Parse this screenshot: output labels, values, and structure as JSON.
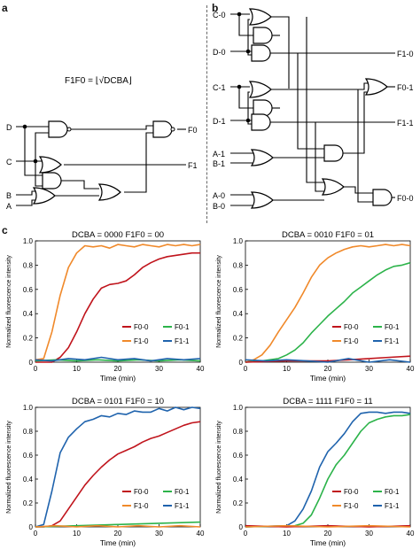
{
  "panels": {
    "a": "a",
    "b": "b",
    "c": "c"
  },
  "circuit_a": {
    "formula": "F1F0 = ⌊√DCBA⌋",
    "inputs": [
      "D",
      "C",
      "B",
      "A"
    ],
    "outputs": [
      "F0",
      "F1"
    ]
  },
  "circuit_b": {
    "inputs": [
      "C-0",
      "D-0",
      "C-1",
      "D-1",
      "A-1",
      "B-1",
      "A-0",
      "B-0"
    ],
    "outputs": [
      "F1-0",
      "F0-1",
      "F1-1",
      "F0-0"
    ]
  },
  "colors": {
    "F0-0": "#c0141c",
    "F0-1": "#2cb34a",
    "F1-0": "#f0892a",
    "F1-1": "#1f63ad"
  },
  "chart_data": [
    {
      "type": "line",
      "title": "DCBA = 0000 F1F0 = 00",
      "xlabel": "Time (min)",
      "ylabel": "Normalized fluorescence intensity",
      "xlim": [
        0,
        40
      ],
      "ylim": [
        0,
        1.0
      ],
      "xticks": [
        "0",
        "10",
        "20",
        "30",
        "40"
      ],
      "yticks": [
        "0",
        "0.2",
        "0.4",
        "0.6",
        "0.8",
        "1.0"
      ],
      "legend": [
        "F0-0",
        "F0-1",
        "F1-0",
        "F1-1"
      ],
      "legend_position": "bottom-right",
      "series": [
        {
          "name": "F1-0",
          "x": [
            0,
            2,
            4,
            6,
            8,
            10,
            12,
            14,
            16,
            18,
            20,
            22,
            24,
            26,
            28,
            30,
            32,
            34,
            36,
            38,
            40
          ],
          "y": [
            0.02,
            0.03,
            0.25,
            0.55,
            0.78,
            0.9,
            0.96,
            0.95,
            0.96,
            0.94,
            0.97,
            0.96,
            0.95,
            0.97,
            0.96,
            0.95,
            0.97,
            0.96,
            0.97,
            0.96,
            0.97
          ]
        },
        {
          "name": "F0-0",
          "x": [
            0,
            2,
            4,
            6,
            8,
            10,
            12,
            14,
            16,
            18,
            20,
            22,
            24,
            26,
            28,
            30,
            32,
            34,
            36,
            38,
            40
          ],
          "y": [
            0.0,
            0.0,
            0.0,
            0.04,
            0.12,
            0.25,
            0.4,
            0.52,
            0.61,
            0.64,
            0.65,
            0.67,
            0.72,
            0.78,
            0.82,
            0.85,
            0.87,
            0.88,
            0.89,
            0.9,
            0.9
          ]
        },
        {
          "name": "F0-1",
          "x": [
            0,
            5,
            10,
            15,
            20,
            25,
            30,
            35,
            40
          ],
          "y": [
            0.01,
            0.02,
            0.01,
            0.02,
            0.01,
            0.02,
            0.01,
            0.02,
            0.01
          ]
        },
        {
          "name": "F1-1",
          "x": [
            0,
            4,
            8,
            12,
            16,
            20,
            24,
            28,
            32,
            36,
            40
          ],
          "y": [
            0.02,
            0.01,
            0.03,
            0.02,
            0.04,
            0.02,
            0.03,
            0.01,
            0.03,
            0.02,
            0.03
          ]
        }
      ]
    },
    {
      "type": "line",
      "title": "DCBA = 0010 F1F0 = 01",
      "xlabel": "Time (min)",
      "ylabel": "Normalized fluorescence intensity",
      "xlim": [
        0,
        40
      ],
      "ylim": [
        0,
        1.0
      ],
      "xticks": [
        "0",
        "10",
        "20",
        "30",
        "40"
      ],
      "yticks": [
        "0",
        "0.2",
        "0.4",
        "0.6",
        "0.8",
        "1.0"
      ],
      "legend": [
        "F0-0",
        "F0-1",
        "F1-0",
        "F1-1"
      ],
      "legend_position": "bottom-right",
      "series": [
        {
          "name": "F1-0",
          "x": [
            0,
            2,
            4,
            6,
            8,
            10,
            12,
            14,
            16,
            18,
            20,
            22,
            24,
            26,
            28,
            30,
            32,
            34,
            36,
            38,
            40
          ],
          "y": [
            0.0,
            0.02,
            0.06,
            0.14,
            0.25,
            0.35,
            0.45,
            0.57,
            0.7,
            0.8,
            0.86,
            0.9,
            0.93,
            0.95,
            0.96,
            0.95,
            0.96,
            0.97,
            0.96,
            0.97,
            0.96
          ]
        },
        {
          "name": "F0-1",
          "x": [
            0,
            4,
            8,
            10,
            12,
            14,
            16,
            18,
            20,
            22,
            24,
            26,
            28,
            30,
            32,
            34,
            36,
            38,
            40
          ],
          "y": [
            0.0,
            0.01,
            0.03,
            0.06,
            0.1,
            0.16,
            0.24,
            0.31,
            0.38,
            0.44,
            0.5,
            0.57,
            0.62,
            0.67,
            0.72,
            0.76,
            0.79,
            0.8,
            0.82
          ]
        },
        {
          "name": "F0-0",
          "x": [
            0,
            10,
            20,
            25,
            30,
            35,
            40
          ],
          "y": [
            0.0,
            0.01,
            0.01,
            0.02,
            0.03,
            0.04,
            0.05
          ]
        },
        {
          "name": "F1-1",
          "x": [
            0,
            5,
            10,
            15,
            20,
            25,
            30,
            35,
            40
          ],
          "y": [
            0.02,
            0.01,
            0.02,
            0.01,
            0.0,
            0.03,
            0.0,
            0.02,
            0.0
          ]
        }
      ]
    },
    {
      "type": "line",
      "title": "DCBA = 0101 F1F0 = 10",
      "xlabel": "Time (min)",
      "ylabel": "Normalized fluorescence intensity",
      "xlim": [
        0,
        40
      ],
      "ylim": [
        0,
        1.0
      ],
      "xticks": [
        "0",
        "10",
        "20",
        "30",
        "40"
      ],
      "yticks": [
        "0",
        "0.2",
        "0.4",
        "0.6",
        "0.8",
        "1.0"
      ],
      "legend": [
        "F0-0",
        "F0-1",
        "F1-0",
        "F1-1"
      ],
      "legend_position": "bottom-right",
      "series": [
        {
          "name": "F1-1",
          "x": [
            0,
            2,
            4,
            6,
            8,
            10,
            12,
            14,
            16,
            18,
            20,
            22,
            24,
            26,
            28,
            30,
            32,
            34,
            36,
            38,
            40
          ],
          "y": [
            0.0,
            0.02,
            0.3,
            0.62,
            0.75,
            0.82,
            0.88,
            0.9,
            0.93,
            0.92,
            0.95,
            0.94,
            0.97,
            0.96,
            0.96,
            0.99,
            0.97,
            1.0,
            0.98,
            1.0,
            0.99
          ]
        },
        {
          "name": "F0-0",
          "x": [
            0,
            2,
            4,
            6,
            8,
            10,
            12,
            14,
            16,
            18,
            20,
            22,
            24,
            26,
            28,
            30,
            32,
            34,
            36,
            38,
            40
          ],
          "y": [
            0.0,
            0.0,
            0.01,
            0.05,
            0.15,
            0.25,
            0.35,
            0.43,
            0.5,
            0.56,
            0.61,
            0.64,
            0.67,
            0.71,
            0.74,
            0.76,
            0.79,
            0.82,
            0.85,
            0.87,
            0.88
          ]
        },
        {
          "name": "F0-1",
          "x": [
            0,
            10,
            20,
            30,
            40
          ],
          "y": [
            0.0,
            0.01,
            0.02,
            0.03,
            0.04
          ]
        },
        {
          "name": "F1-0",
          "x": [
            0,
            5,
            10,
            15,
            20,
            25,
            30,
            35,
            40
          ],
          "y": [
            0.0,
            0.01,
            0.0,
            0.01,
            0.0,
            0.01,
            0.0,
            0.01,
            0.0
          ]
        }
      ]
    },
    {
      "type": "line",
      "title": "DCBA = 1111 F1F0 = 11",
      "xlabel": "Time (min)",
      "ylabel": "Normalized fluorescence intensity",
      "xlim": [
        0,
        40
      ],
      "ylim": [
        0,
        1.0
      ],
      "xticks": [
        "0",
        "10",
        "20",
        "30",
        "40"
      ],
      "yticks": [
        "0",
        "0.2",
        "0.4",
        "0.6",
        "0.8",
        "1.0"
      ],
      "legend": [
        "F0-0",
        "F0-1",
        "F1-0",
        "F1-1"
      ],
      "legend_position": "bottom-right",
      "series": [
        {
          "name": "F1-1",
          "x": [
            0,
            10,
            12,
            14,
            16,
            18,
            20,
            22,
            24,
            26,
            28,
            30,
            32,
            34,
            36,
            38,
            40
          ],
          "y": [
            0.0,
            0.01,
            0.05,
            0.15,
            0.3,
            0.5,
            0.63,
            0.7,
            0.78,
            0.88,
            0.95,
            0.96,
            0.96,
            0.95,
            0.96,
            0.96,
            0.95
          ]
        },
        {
          "name": "F0-1",
          "x": [
            0,
            12,
            14,
            16,
            18,
            20,
            22,
            24,
            26,
            28,
            30,
            32,
            34,
            36,
            38,
            40
          ],
          "y": [
            0.0,
            0.01,
            0.03,
            0.1,
            0.24,
            0.4,
            0.52,
            0.6,
            0.7,
            0.8,
            0.87,
            0.9,
            0.92,
            0.93,
            0.93,
            0.94
          ]
        },
        {
          "name": "F0-0",
          "x": [
            0,
            10,
            20,
            30,
            40
          ],
          "y": [
            0.01,
            0.0,
            0.01,
            0.0,
            0.01
          ]
        },
        {
          "name": "F1-0",
          "x": [
            0,
            10,
            20,
            30,
            40
          ],
          "y": [
            0.0,
            0.01,
            0.0,
            0.01,
            0.0
          ]
        }
      ]
    }
  ]
}
